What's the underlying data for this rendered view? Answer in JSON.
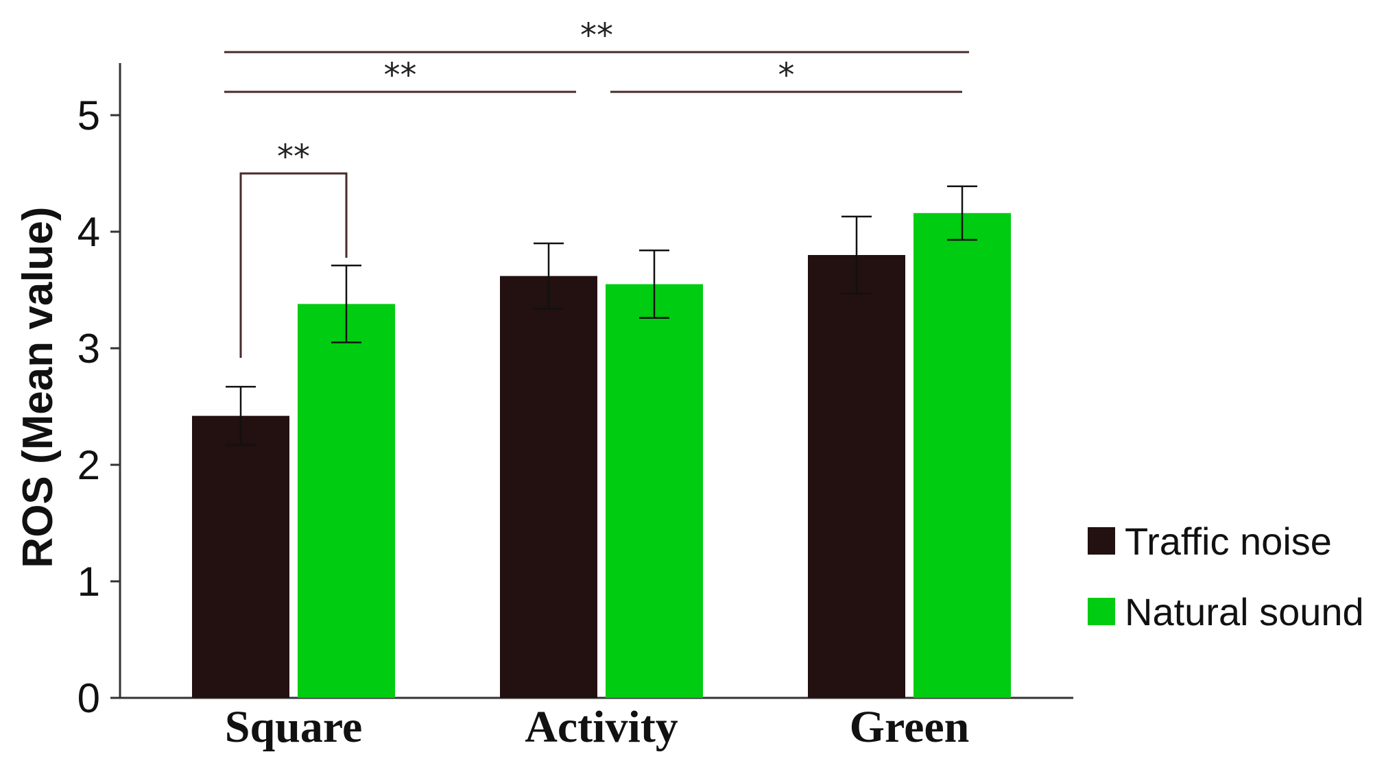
{
  "chart_data": {
    "type": "bar",
    "ylabel": "ROS (Mean value)",
    "xlabel": "",
    "ylim": [
      0,
      5.5
    ],
    "yticks": [
      0,
      1,
      2,
      3,
      4,
      5
    ],
    "categories": [
      "Square",
      "Activity",
      "Green"
    ],
    "series": [
      {
        "name": "Traffic noise",
        "color": "#231010",
        "values": [
          2.42,
          3.62,
          3.8
        ],
        "errors": [
          0.25,
          0.28,
          0.33
        ]
      },
      {
        "name": "Natural sound",
        "color": "#00cc12",
        "values": [
          3.38,
          3.55,
          4.16
        ],
        "errors": [
          0.33,
          0.29,
          0.23
        ]
      }
    ],
    "legend_position": "right",
    "grid": false,
    "significance": [
      {
        "label": "**",
        "from": "Square: Traffic noise",
        "to": "Square: Natural sound",
        "style": "bracket"
      },
      {
        "label": "**",
        "from": "Square",
        "to": "Activity",
        "style": "line"
      },
      {
        "label": "*",
        "from": "Activity",
        "to": "Green",
        "style": "line"
      },
      {
        "label": "**",
        "from": "Square",
        "to": "Green",
        "style": "line"
      }
    ]
  }
}
